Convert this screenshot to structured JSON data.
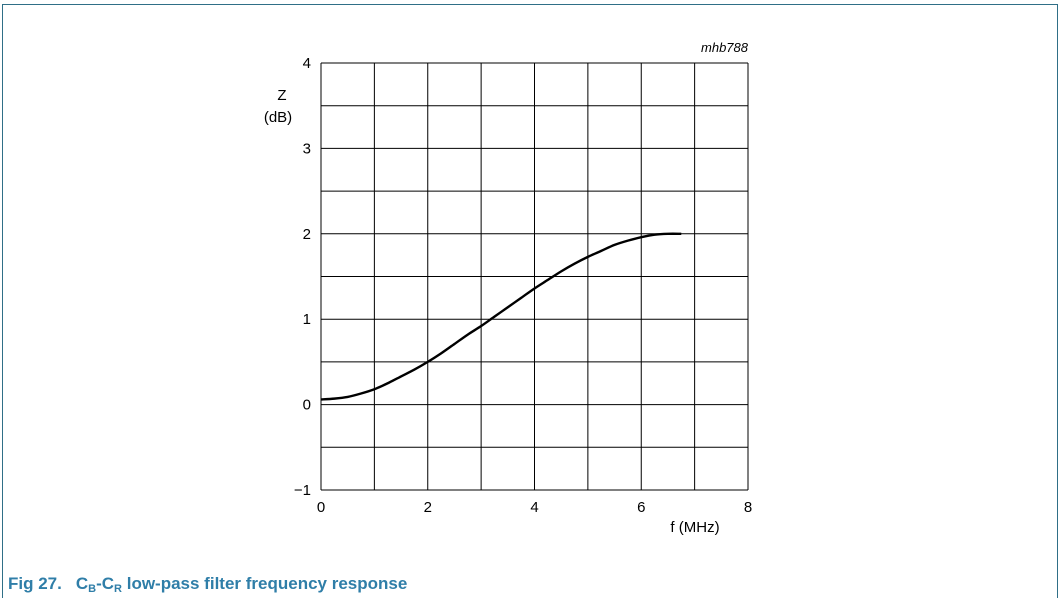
{
  "figure": {
    "caption_number": "Fig 27.",
    "caption_main_1": "C",
    "caption_sub_1": "B",
    "caption_main_2": "-C",
    "caption_sub_2": "R",
    "caption_rest": " low-pass filter frequency response",
    "code": "mhb788"
  },
  "colors": {
    "frame": "#2f6f87",
    "caption": "#2f7ea8",
    "grid": "#000000",
    "curve": "#000000"
  },
  "chart_data": {
    "type": "line",
    "title": "",
    "xlabel": "f (MHz)",
    "ylabel_line1": "Z",
    "ylabel_line2": "(dB)",
    "xlim": [
      0,
      8
    ],
    "ylim": [
      -1,
      4
    ],
    "x_ticks": [
      0,
      2,
      4,
      6,
      8
    ],
    "x_tick_labels": [
      "0",
      "2",
      "4",
      "6",
      "8"
    ],
    "y_ticks": [
      -1,
      0,
      1,
      2,
      3,
      4
    ],
    "y_tick_labels": [
      "−1",
      "0",
      "1",
      "2",
      "3",
      "4"
    ],
    "grid": true,
    "grid_x_step": 1,
    "grid_y_step": 0.5,
    "series": [
      {
        "x": [
          0,
          0.25,
          0.5,
          0.75,
          1.0,
          1.25,
          1.5,
          1.75,
          2.0,
          2.25,
          2.5,
          2.75,
          3.0,
          3.25,
          3.5,
          3.75,
          4.0,
          4.25,
          4.5,
          4.75,
          5.0,
          5.25,
          5.5,
          5.75,
          6.0,
          6.25,
          6.5,
          6.75
        ],
        "y": [
          0.06,
          0.07,
          0.09,
          0.13,
          0.18,
          0.25,
          0.33,
          0.41,
          0.5,
          0.6,
          0.71,
          0.82,
          0.92,
          1.03,
          1.14,
          1.25,
          1.36,
          1.46,
          1.56,
          1.65,
          1.73,
          1.8,
          1.87,
          1.92,
          1.96,
          1.99,
          2.0,
          2.0
        ]
      }
    ]
  }
}
